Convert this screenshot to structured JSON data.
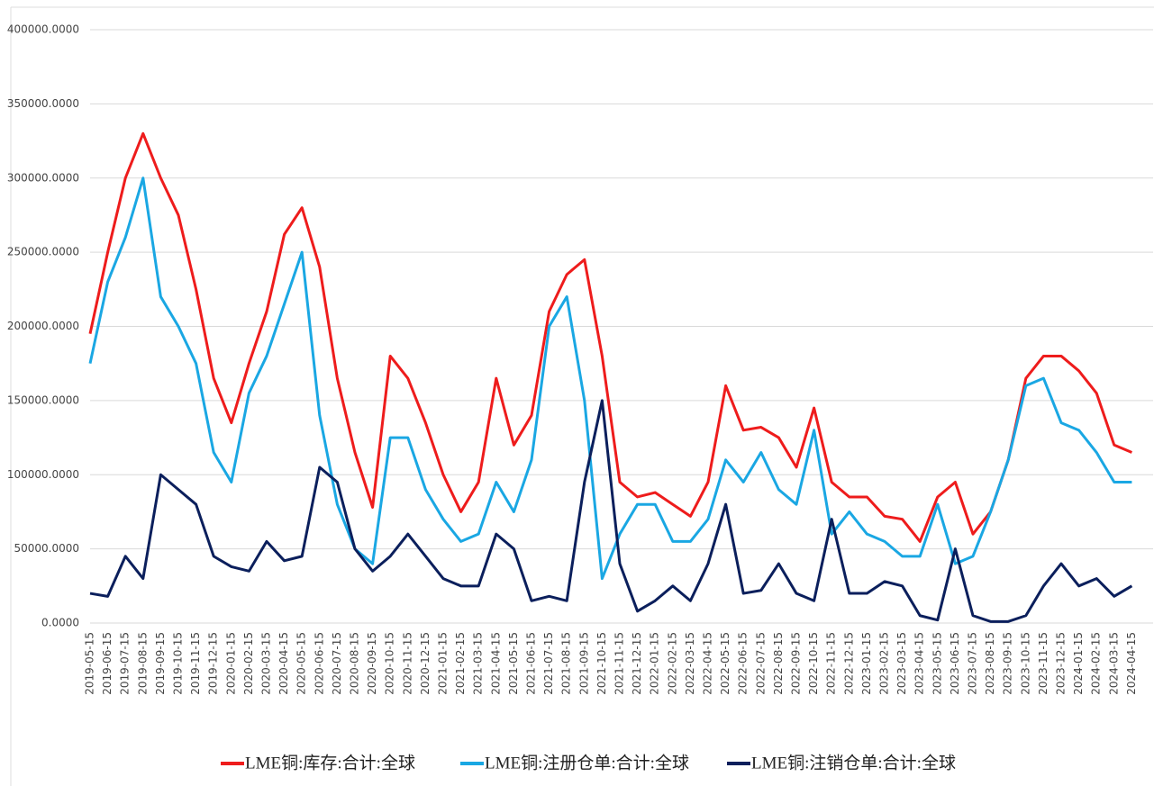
{
  "chart_data": {
    "type": "line",
    "categories": [
      "2019-05-15",
      "2019-06-15",
      "2019-07-15",
      "2019-08-15",
      "2019-09-15",
      "2019-10-15",
      "2019-11-15",
      "2019-12-15",
      "2020-01-15",
      "2020-02-15",
      "2020-03-15",
      "2020-04-15",
      "2020-05-15",
      "2020-06-15",
      "2020-07-15",
      "2020-08-15",
      "2020-09-15",
      "2020-10-15",
      "2020-11-15",
      "2020-12-15",
      "2021-01-15",
      "2021-02-15",
      "2021-03-15",
      "2021-04-15",
      "2021-05-15",
      "2021-06-15",
      "2021-07-15",
      "2021-08-15",
      "2021-09-15",
      "2021-10-15",
      "2021-11-15",
      "2021-12-15",
      "2022-01-15",
      "2022-02-15",
      "2022-03-15",
      "2022-04-15",
      "2022-05-15",
      "2022-06-15",
      "2022-07-15",
      "2022-08-15",
      "2022-09-15",
      "2022-10-15",
      "2022-11-15",
      "2022-12-15",
      "2023-01-15",
      "2023-02-15",
      "2023-03-15",
      "2023-04-15",
      "2023-05-15",
      "2023-06-15",
      "2023-07-15",
      "2023-08-15",
      "2023-09-15",
      "2023-10-15",
      "2023-11-15",
      "2023-12-15",
      "2024-01-15",
      "2024-02-15",
      "2024-03-15",
      "2024-04-15"
    ],
    "series": [
      {
        "name": "LME铜:库存:合计:全球",
        "color": "#ee1c1c",
        "values": [
          195000,
          250000,
          300000,
          330000,
          300000,
          275000,
          225000,
          165000,
          135000,
          175000,
          210000,
          262000,
          280000,
          240000,
          165000,
          115000,
          78000,
          180000,
          165000,
          135000,
          100000,
          75000,
          95000,
          165000,
          120000,
          140000,
          210000,
          235000,
          245000,
          180000,
          95000,
          85000,
          88000,
          80000,
          72000,
          95000,
          160000,
          130000,
          132000,
          125000,
          105000,
          145000,
          95000,
          85000,
          85000,
          72000,
          70000,
          55000,
          85000,
          95000,
          60000,
          75000,
          110000,
          165000,
          180000,
          180000,
          170000,
          155000,
          120000,
          115000
        ]
      },
      {
        "name": "LME铜:注册仓单:合计:全球",
        "color": "#1aa7e3",
        "values": [
          175000,
          230000,
          260000,
          300000,
          220000,
          200000,
          175000,
          115000,
          95000,
          155000,
          180000,
          215000,
          250000,
          140000,
          80000,
          50000,
          40000,
          125000,
          125000,
          90000,
          70000,
          55000,
          60000,
          95000,
          75000,
          110000,
          200000,
          220000,
          150000,
          30000,
          60000,
          80000,
          80000,
          55000,
          55000,
          70000,
          110000,
          95000,
          115000,
          90000,
          80000,
          130000,
          60000,
          75000,
          60000,
          55000,
          45000,
          45000,
          80000,
          40000,
          45000,
          75000,
          110000,
          160000,
          165000,
          135000,
          130000,
          115000,
          95000,
          95000
        ]
      },
      {
        "name": "LME铜:注销仓单:合计:全球",
        "color": "#0b1f5c",
        "values": [
          20000,
          18000,
          45000,
          30000,
          100000,
          90000,
          80000,
          45000,
          38000,
          35000,
          55000,
          42000,
          45000,
          105000,
          95000,
          50000,
          35000,
          45000,
          60000,
          45000,
          30000,
          25000,
          25000,
          60000,
          50000,
          15000,
          18000,
          15000,
          95000,
          150000,
          40000,
          8000,
          15000,
          25000,
          15000,
          40000,
          80000,
          20000,
          22000,
          40000,
          20000,
          15000,
          70000,
          20000,
          20000,
          28000,
          25000,
          5000,
          2000,
          50000,
          5000,
          1000,
          1000,
          5000,
          25000,
          40000,
          25000,
          30000,
          18000,
          25000
        ]
      }
    ],
    "ylim": [
      0,
      400000
    ],
    "yticks": [
      {
        "value": 0,
        "label": "0.0000"
      },
      {
        "value": 50000,
        "label": "50000.0000"
      },
      {
        "value": 100000,
        "label": "100000.0000"
      },
      {
        "value": 150000,
        "label": "150000.0000"
      },
      {
        "value": 200000,
        "label": "200000.0000"
      },
      {
        "value": 250000,
        "label": "250000.0000"
      },
      {
        "value": 300000,
        "label": "300000.0000"
      },
      {
        "value": 350000,
        "label": "350000.0000"
      },
      {
        "value": 400000,
        "label": "400000.0000"
      }
    ],
    "grid": true
  }
}
